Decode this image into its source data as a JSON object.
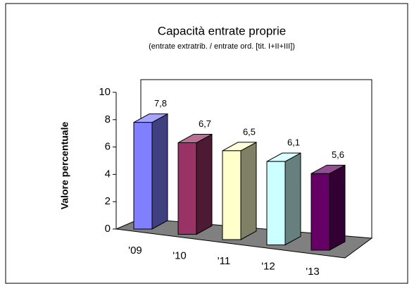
{
  "chart_data": {
    "type": "bar3d",
    "title": "Capacità entrate proprie",
    "subtitle": "(entrate extratrib. / entrate ord. [tit. I+II+III])",
    "y_label": "Valore percentuale",
    "categories": [
      "'09",
      "'10",
      "'11",
      "'12",
      "'13"
    ],
    "values": [
      7.8,
      6.7,
      6.5,
      6.1,
      5.6
    ],
    "value_labels": [
      "7,8",
      "6,7",
      "6,5",
      "6,1",
      "5,6"
    ],
    "colors": [
      "#8080ff",
      "#993366",
      "#ffffcc",
      "#ccffff",
      "#660066"
    ],
    "ylim": [
      0,
      10
    ],
    "yticks": [
      0,
      2,
      4,
      6,
      8,
      10
    ]
  }
}
